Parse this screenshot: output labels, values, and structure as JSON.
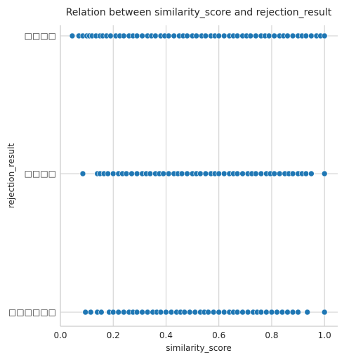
{
  "chart_data": {
    "type": "scatter",
    "title": "Relation between similarity_score and rejection_result",
    "xlabel": "similarity_score",
    "ylabel": "rejection_result",
    "xlim": [
      0.0,
      1.05
    ],
    "x_ticks": [
      "0.0",
      "0.2",
      "0.4",
      "0.6",
      "0.8",
      "1.0"
    ],
    "x_tick_values": [
      0.0,
      0.2,
      0.4,
      0.6,
      0.8,
      1.0
    ],
    "categories": [
      "□□□□",
      "□□□□",
      "□□□□□□"
    ],
    "grid": true,
    "point_color": "#1f77b4",
    "series": [
      {
        "category_index": 0,
        "x": [
          0.045,
          0.07,
          0.085,
          0.1,
          0.11,
          0.12,
          0.135,
          0.15,
          0.16,
          0.175,
          0.19,
          0.21,
          0.225,
          0.24,
          0.26,
          0.275,
          0.29,
          0.31,
          0.33,
          0.345,
          0.36,
          0.38,
          0.395,
          0.41,
          0.43,
          0.45,
          0.465,
          0.48,
          0.5,
          0.515,
          0.535,
          0.55,
          0.57,
          0.585,
          0.6,
          0.62,
          0.64,
          0.655,
          0.67,
          0.69,
          0.705,
          0.72,
          0.74,
          0.76,
          0.775,
          0.79,
          0.81,
          0.83,
          0.845,
          0.86,
          0.88,
          0.9,
          0.915,
          0.93,
          0.95,
          0.97,
          0.985,
          1.0
        ]
      },
      {
        "category_index": 1,
        "x": [
          0.085,
          0.14,
          0.15,
          0.165,
          0.18,
          0.2,
          0.22,
          0.235,
          0.25,
          0.27,
          0.29,
          0.31,
          0.325,
          0.34,
          0.36,
          0.375,
          0.39,
          0.41,
          0.43,
          0.445,
          0.46,
          0.48,
          0.5,
          0.515,
          0.53,
          0.55,
          0.57,
          0.585,
          0.6,
          0.62,
          0.64,
          0.655,
          0.67,
          0.69,
          0.71,
          0.725,
          0.74,
          0.76,
          0.78,
          0.795,
          0.81,
          0.83,
          0.85,
          0.865,
          0.88,
          0.9,
          0.915,
          0.93,
          0.95,
          1.0
        ]
      },
      {
        "category_index": 2,
        "x": [
          0.095,
          0.115,
          0.14,
          0.155,
          0.185,
          0.2,
          0.22,
          0.24,
          0.26,
          0.275,
          0.29,
          0.31,
          0.33,
          0.35,
          0.365,
          0.38,
          0.4,
          0.42,
          0.44,
          0.455,
          0.47,
          0.49,
          0.51,
          0.53,
          0.545,
          0.56,
          0.58,
          0.6,
          0.62,
          0.64,
          0.655,
          0.67,
          0.69,
          0.71,
          0.73,
          0.745,
          0.76,
          0.78,
          0.8,
          0.82,
          0.84,
          0.86,
          0.88,
          0.9,
          0.935,
          1.0
        ]
      }
    ]
  }
}
